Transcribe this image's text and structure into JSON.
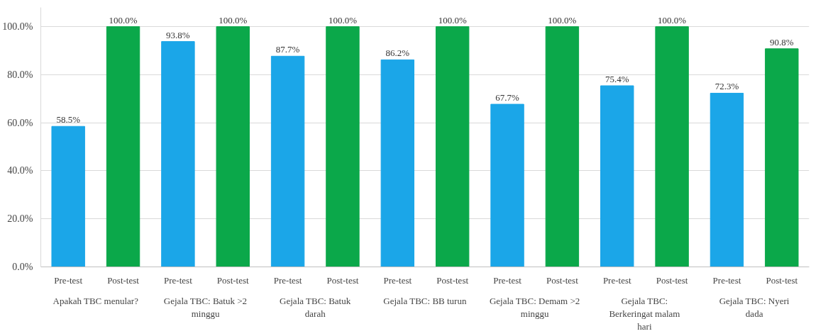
{
  "chart_data": {
    "type": "bar",
    "categories": [
      "Apakah TBC menular?",
      "Gejala TBC: Batuk >2 minggu",
      "Gejala TBC: Batuk darah",
      "Gejala TBC: BB turun",
      "Gejala TBC: Demam >2 minggu",
      "Gejala TBC: Berkeringat malam hari",
      "Gejala TBC: Nyeri dada"
    ],
    "series": [
      {
        "name": "Pre-test",
        "color": "#1ba6e8",
        "values": [
          58.5,
          93.8,
          87.7,
          86.2,
          67.7,
          75.4,
          72.3
        ],
        "value_labels": [
          "58.5%",
          "93.8%",
          "87.7%",
          "86.2%",
          "67.7%",
          "75.4%",
          "72.3%"
        ]
      },
      {
        "name": "Post-test",
        "color": "#0ba84a",
        "values": [
          100.0,
          100.0,
          100.0,
          100.0,
          100.0,
          100.0,
          90.8
        ],
        "value_labels": [
          "100.0%",
          "100.0%",
          "100.0%",
          "100.0%",
          "100.0%",
          "100.0%",
          "90.8%"
        ]
      }
    ],
    "ylim": [
      0,
      108
    ],
    "yticks": [
      {
        "value": 0,
        "label": "0.0%"
      },
      {
        "value": 20,
        "label": "20.0%"
      },
      {
        "value": 40,
        "label": "40.0%"
      },
      {
        "value": 60,
        "label": "60.0%"
      },
      {
        "value": 80,
        "label": "80.0%"
      },
      {
        "value": 100,
        "label": "100.0%"
      }
    ],
    "grid": "y"
  }
}
